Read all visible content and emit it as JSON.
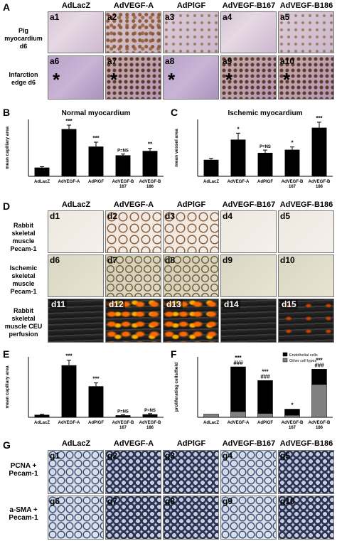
{
  "colors": {
    "bar": "#000000",
    "endothelial": "#000000",
    "other": "#808080"
  },
  "group_headers": [
    "AdLacZ",
    "AdVEGF-A",
    "AdPlGF",
    "AdVEGF-B167",
    "AdVEGF-B186"
  ],
  "panel_A": {
    "letter": "A",
    "row_labels": [
      "Pig myocardium d6",
      "Infarction edge d6"
    ],
    "tiles": [
      "a1",
      "a2",
      "a3",
      "a4",
      "a5",
      "a6",
      "a7",
      "a8",
      "a9",
      "a10"
    ],
    "star": "*"
  },
  "panel_D": {
    "letter": "D",
    "row_labels": [
      "Rabbit skeletal muscle Pecam-1",
      "Ischemic skeletal muscle Pecam-1",
      "Rabbit skeletal muscle CEU perfusion"
    ],
    "tiles": [
      "d1",
      "d2",
      "d3",
      "d4",
      "d5",
      "d6",
      "d7",
      "d8",
      "d9",
      "d10",
      "d11",
      "d12",
      "d13",
      "d14",
      "d15"
    ]
  },
  "panel_G": {
    "letter": "G",
    "row_labels": [
      "PCNA + Pecam-1",
      "a-SMA + Pecam-1"
    ],
    "tiles": [
      "g1",
      "g2",
      "g3",
      "g4",
      "g5",
      "g6",
      "g7",
      "g8",
      "g9",
      "g10"
    ]
  },
  "chart_data": [
    {
      "panel": "B",
      "type": "bar",
      "title": "Normal myocardium",
      "ylabel": "mean capillary area",
      "categories": [
        "AdLacZ",
        "AdVEGF-A",
        "AdPlGF",
        "AdVEGF-B 167",
        "AdVEGF-B 186"
      ],
      "values": [
        20,
        108,
        68,
        48,
        58
      ],
      "errors": [
        2,
        9,
        10,
        3,
        6
      ],
      "ylim": [
        0,
        130
      ],
      "annotations": [
        "",
        "***",
        "***",
        "P=NS",
        "**"
      ]
    },
    {
      "panel": "C",
      "type": "bar",
      "title": "Ischemic myocardium",
      "ylabel": "mean vessel area",
      "categories": [
        "AdLacZ",
        "AdVEGF-A",
        "AdPlGF",
        "AdVEGF-B 167",
        "AdVEGF-B 186"
      ],
      "values": [
        90,
        200,
        128,
        145,
        265
      ],
      "errors": [
        8,
        35,
        15,
        15,
        30
      ],
      "ylim": [
        0,
        310
      ],
      "annotations": [
        "",
        "*",
        "P=NS",
        "*",
        "***"
      ]
    },
    {
      "panel": "E",
      "type": "bar",
      "title": "",
      "ylabel": "mean capillary area",
      "categories": [
        "AdLacZ",
        "AdVEGF-A",
        "AdPlGF",
        "AdVEGF-B 167",
        "AdVEGF-B 186"
      ],
      "values": [
        15,
        310,
        185,
        12,
        18
      ],
      "errors": [
        3,
        30,
        20,
        3,
        4
      ],
      "ylim": [
        0,
        360
      ],
      "annotations": [
        "",
        "***",
        "***",
        "P=NS",
        "P=NS"
      ]
    },
    {
      "panel": "F",
      "type": "bar",
      "stacked": true,
      "title": "",
      "ylabel": "proliferating cells/field",
      "categories": [
        "AdLacZ",
        "AdVEGF-A",
        "AdPlGF",
        "AdVEGF-B 167",
        "AdVEGF-B 186"
      ],
      "series": [
        {
          "name": "Other cell types",
          "values": [
            12,
            22,
            15,
            8,
            125
          ]
        },
        {
          "name": "Endothelial cells",
          "values": [
            0,
            170,
            125,
            23,
            58
          ]
        }
      ],
      "ylim": [
        0,
        230
      ],
      "annotations": [
        "",
        "***\n###",
        "***\n###",
        "*",
        "***\n###"
      ]
    }
  ]
}
